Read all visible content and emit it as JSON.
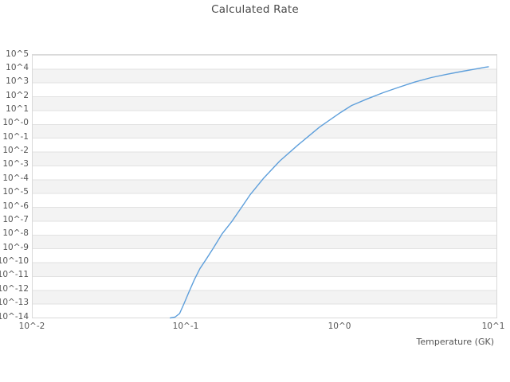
{
  "title": "Calculated Rate",
  "colors": {
    "line": "#5e9fdb",
    "band_alt": "#f3f3f3",
    "gridline": "#e2e2e2",
    "plot_border": "#d9d9d9",
    "tick_text": "#555555",
    "title_text": "#4a4a4a",
    "background": "#ffffff"
  },
  "chart_data": {
    "type": "line",
    "title": "Calculated Rate",
    "xlabel": "Temperature (GK)",
    "ylabel": "",
    "x_scale": "log10",
    "y_scale": "log10",
    "grid": "horizontal-decade-lines-with-alternating-bands",
    "legend": "none",
    "xlim_log10": [
      -2,
      1.0155
    ],
    "ylim_log10": [
      -14,
      5
    ],
    "x_tick_labels": [
      "10^-2",
      "10^-1",
      "10^0",
      "10^1"
    ],
    "x_tick_log10": [
      -2,
      -1,
      0,
      1
    ],
    "y_tick_labels": [
      "10^5",
      "10^4",
      "10^3",
      "10^2",
      "10^1",
      "10^-0",
      "10^-1",
      "10^-2",
      "10^-3",
      "10^-4",
      "10^-5",
      "10^-6",
      "10^-7",
      "10^-8",
      "10^-9",
      "10^-10",
      "10^-11",
      "10^-12",
      "10^-13",
      "10^-14"
    ],
    "series": [
      {
        "name": "calculated-rate",
        "color": "#5e9fdb",
        "points_log10": [
          [
            -1.105,
            -14.03
          ],
          [
            -1.075,
            -13.97
          ],
          [
            -1.045,
            -13.72
          ],
          [
            -1.016,
            -13.0
          ],
          [
            -0.985,
            -12.18
          ],
          [
            -0.948,
            -11.25
          ],
          [
            -0.912,
            -10.45
          ],
          [
            -0.87,
            -9.75
          ],
          [
            -0.824,
            -8.95
          ],
          [
            -0.767,
            -7.92
          ],
          [
            -0.705,
            -7.05
          ],
          [
            -0.643,
            -6.05
          ],
          [
            -0.585,
            -5.1
          ],
          [
            -0.497,
            -3.9
          ],
          [
            -0.394,
            -2.68
          ],
          [
            -0.275,
            -1.52
          ],
          [
            -0.135,
            -0.22
          ],
          [
            0.0,
            0.82
          ],
          [
            0.073,
            1.34
          ],
          [
            0.176,
            1.82
          ],
          [
            0.28,
            2.27
          ],
          [
            0.383,
            2.67
          ],
          [
            0.487,
            3.05
          ],
          [
            0.591,
            3.36
          ],
          [
            0.694,
            3.6
          ],
          [
            0.798,
            3.82
          ],
          [
            0.88,
            3.98
          ],
          [
            0.94,
            4.1
          ],
          [
            0.963,
            4.14
          ]
        ]
      }
    ]
  }
}
